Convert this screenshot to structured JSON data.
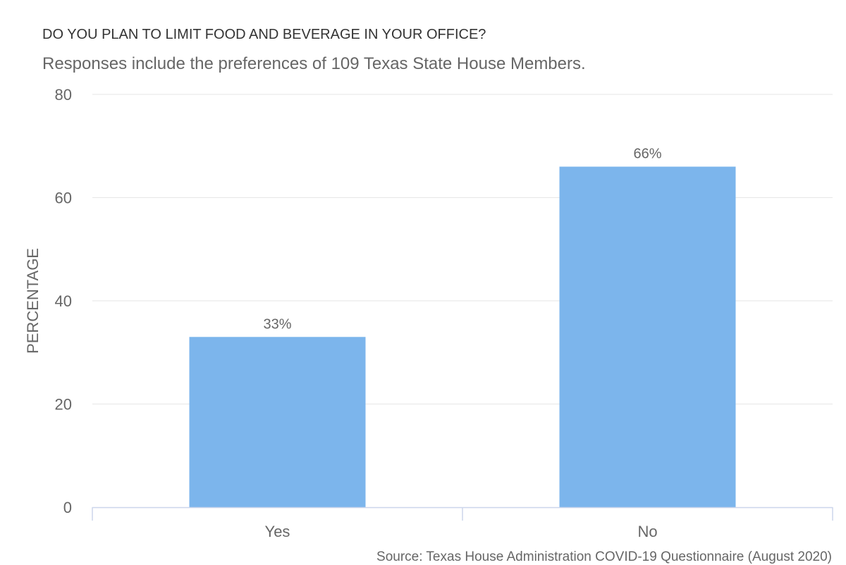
{
  "chart_data": {
    "type": "bar",
    "title": "DO YOU PLAN TO LIMIT FOOD AND BEVERAGE IN YOUR OFFICE?",
    "subtitle": "Responses include the preferences of 109 Texas State House Members.",
    "categories": [
      "Yes",
      "No"
    ],
    "values": [
      33,
      66
    ],
    "data_labels": [
      "33%",
      "66%"
    ],
    "xlabel": "",
    "ylabel": "PERCENTAGE",
    "ylim": [
      0,
      80
    ],
    "yticks": [
      0,
      20,
      40,
      60,
      80
    ],
    "grid": true,
    "legend": "none",
    "source": "Source: Texas House Administration COVID-19 Questionnaire (August 2020)",
    "colors": {
      "bar": "#7cb5ec",
      "grid": "#e6e6e6",
      "axis": "#ccd6eb",
      "text": "#666666"
    }
  }
}
